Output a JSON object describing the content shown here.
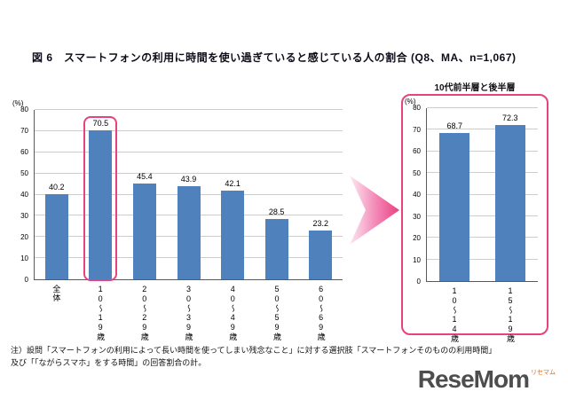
{
  "title": "図 6　スマートフォンの利用に時間を使い過ぎていると感じている人の割合 (Q8、MA、n=1,067)",
  "sub_chart_title": "10代前半層と後半層",
  "note": {
    "line1": "注）設問「スマートフォンの利用によって長い時間を使ってしまい残念なこと」に対する選択肢「スマートフォンそのものの利用時間」",
    "line2": "及び「「ながらスマホ」をする時間」の回答割合の計。"
  },
  "logo": {
    "text": "ReseMom",
    "sub": "リセマム"
  },
  "colors": {
    "bar": "#4f81bd",
    "highlight": "#e8417f"
  },
  "chart_data": [
    {
      "type": "bar",
      "title": "スマートフォンの利用に時間を使い過ぎていると感じている人の割合",
      "categories": [
        "全体",
        "10～19歳",
        "20～29歳",
        "30～39歳",
        "40～49歳",
        "50～59歳",
        "60～69歳"
      ],
      "values": [
        40.2,
        70.5,
        45.4,
        43.9,
        42.1,
        28.5,
        23.2
      ],
      "ylabel": "(%)",
      "ylim": [
        0,
        80
      ],
      "ytick_step": 10,
      "highlight_index": 1,
      "bar_color": "#4f81bd",
      "highlight_color": "#e8417f",
      "grid": true,
      "legend": "none"
    },
    {
      "type": "bar",
      "title": "10代前半層と後半層",
      "categories": [
        "10～14歳",
        "15～19歳"
      ],
      "values": [
        68.7,
        72.3
      ],
      "ylabel": "(%)",
      "ylim": [
        0,
        80
      ],
      "ytick_step": 10,
      "highlight_index": -1,
      "bar_color": "#4f81bd",
      "grid": true,
      "legend": "none"
    }
  ]
}
